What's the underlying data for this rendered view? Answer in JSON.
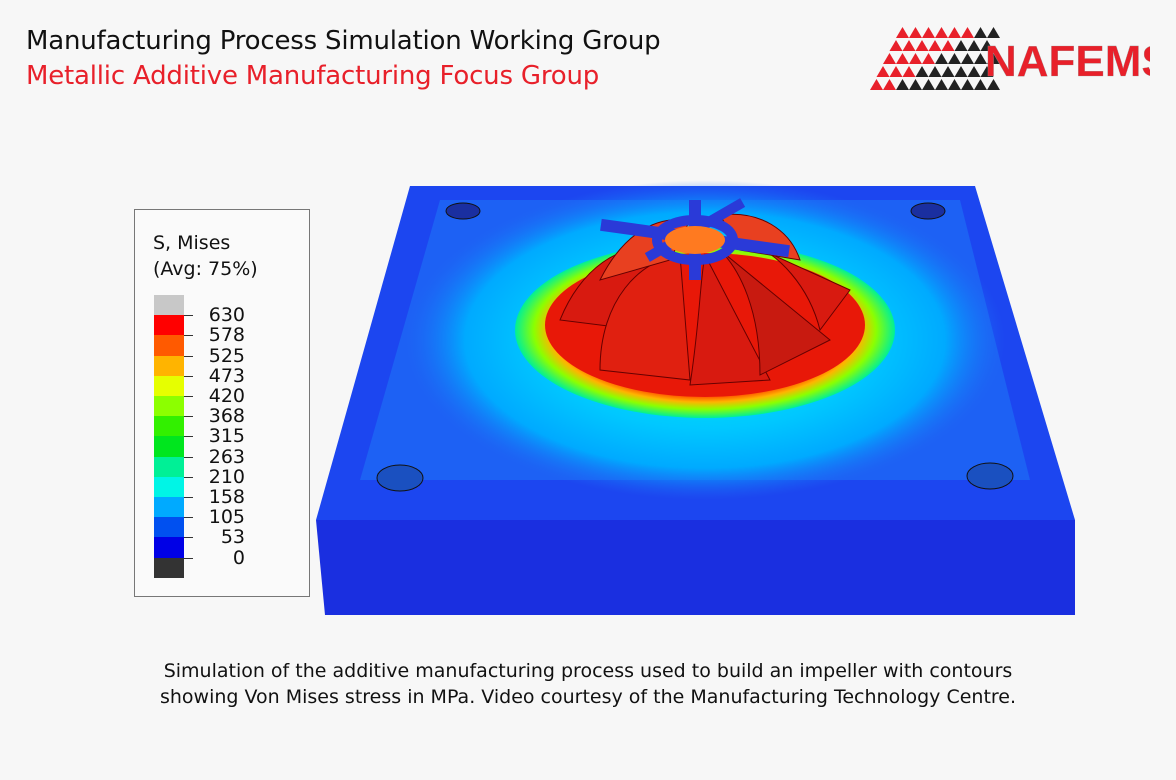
{
  "header": {
    "title": "Manufacturing Process Simulation Working Group",
    "subtitle": "Metallic Additive Manufacturing Focus Group",
    "title_color": "#111111",
    "subtitle_color": "#e8202a"
  },
  "logo": {
    "text": "NAFEMS",
    "color": "#e8202a"
  },
  "legend": {
    "title": "S, Mises",
    "subtitle": "(Avg: 75%)",
    "bands": [
      {
        "color": "#c8c8c8"
      },
      {
        "color": "#ff0000"
      },
      {
        "color": "#ff5a00"
      },
      {
        "color": "#ffb400"
      },
      {
        "color": "#e6ff00"
      },
      {
        "color": "#8cff00"
      },
      {
        "color": "#32f000"
      },
      {
        "color": "#00e61e"
      },
      {
        "color": "#00f096"
      },
      {
        "color": "#00f5e6"
      },
      {
        "color": "#00aaff"
      },
      {
        "color": "#0050f0"
      },
      {
        "color": "#0000e6"
      },
      {
        "color": "#333333"
      }
    ],
    "labels": [
      "630",
      "578",
      "525",
      "473",
      "420",
      "368",
      "315",
      "263",
      "210",
      "158",
      "105",
      "53",
      "0"
    ]
  },
  "caption": {
    "line1": "Simulation of the additive manufacturing process used to build an impeller with contours",
    "line2": "showing Von Mises stress in MPa. Video courtesy of the Manufacturing Technology Centre."
  }
}
